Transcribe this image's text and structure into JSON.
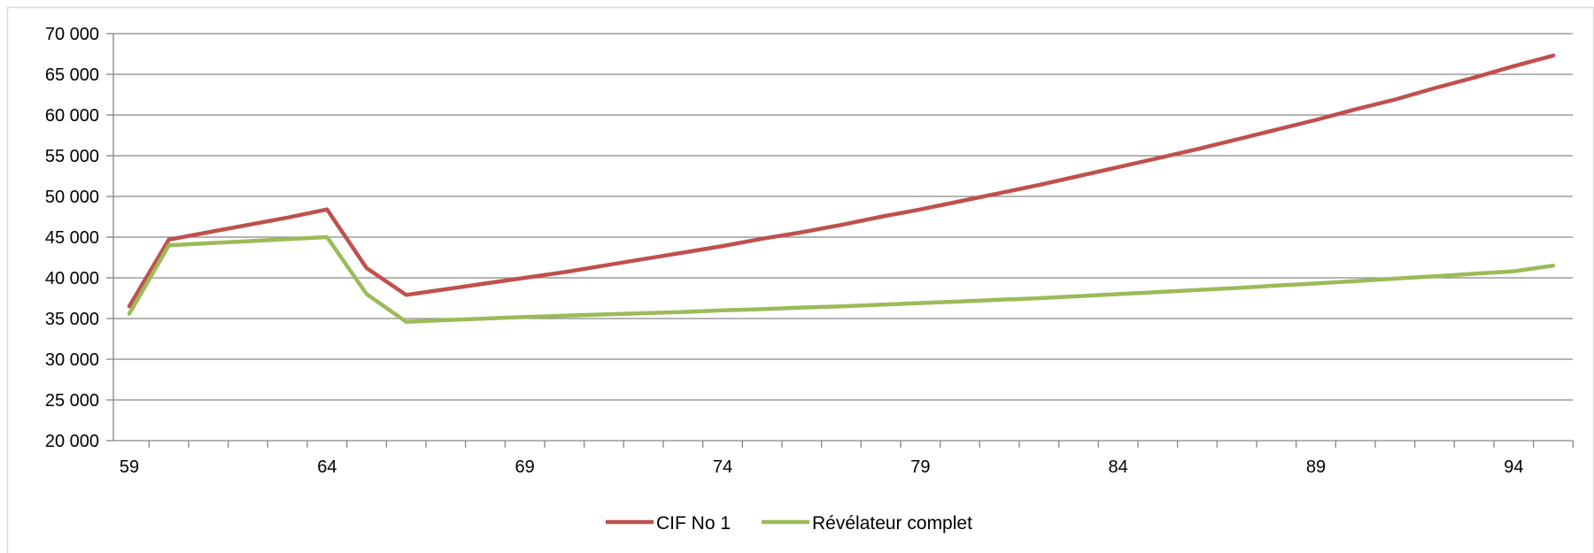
{
  "chart_data": {
    "type": "line",
    "title": "",
    "xlabel": "",
    "ylabel": "",
    "xlim": [
      59,
      95
    ],
    "ylim": [
      20000,
      70000
    ],
    "x_ticks": [
      59,
      64,
      69,
      74,
      79,
      84,
      89,
      94
    ],
    "x_tick_labels": [
      "59",
      "64",
      "69",
      "74",
      "79",
      "84",
      "89",
      "94"
    ],
    "y_ticks": [
      20000,
      25000,
      30000,
      35000,
      40000,
      45000,
      50000,
      55000,
      60000,
      65000,
      70000
    ],
    "y_tick_labels": [
      "20 000",
      "25 000",
      "30 000",
      "35 000",
      "40 000",
      "45 000",
      "50 000",
      "55 000",
      "60 000",
      "65 000",
      "70 000"
    ],
    "grid": "horizontal major gridlines",
    "legend_position": "bottom",
    "x": [
      59,
      60,
      61,
      62,
      63,
      64,
      65,
      66,
      67,
      68,
      69,
      70,
      71,
      72,
      73,
      74,
      75,
      76,
      77,
      78,
      79,
      80,
      81,
      82,
      83,
      84,
      85,
      86,
      87,
      88,
      89,
      90,
      91,
      92,
      93,
      94,
      95
    ],
    "series": [
      {
        "name": "CIF No 1",
        "color": "#c0504d",
        "values": [
          36500,
          44700,
          45600,
          46500,
          47400,
          48400,
          41200,
          37900,
          38600,
          39300,
          40000,
          40700,
          41500,
          42300,
          43100,
          43900,
          44800,
          45600,
          46500,
          47500,
          48400,
          49400,
          50400,
          51400,
          52500,
          53600,
          54700,
          55800,
          57000,
          58200,
          59400,
          60700,
          61900,
          63300,
          64600,
          66000,
          67300
        ]
      },
      {
        "name": "Révélateur complet",
        "color": "#9bbb59",
        "values": [
          35600,
          44000,
          44250,
          44500,
          44750,
          45000,
          38000,
          34600,
          34800,
          35000,
          35200,
          35350,
          35500,
          35650,
          35800,
          36000,
          36150,
          36350,
          36500,
          36700,
          36900,
          37100,
          37300,
          37500,
          37750,
          38000,
          38250,
          38500,
          38750,
          39050,
          39300,
          39600,
          39900,
          40200,
          40500,
          40800,
          41500
        ]
      }
    ]
  }
}
